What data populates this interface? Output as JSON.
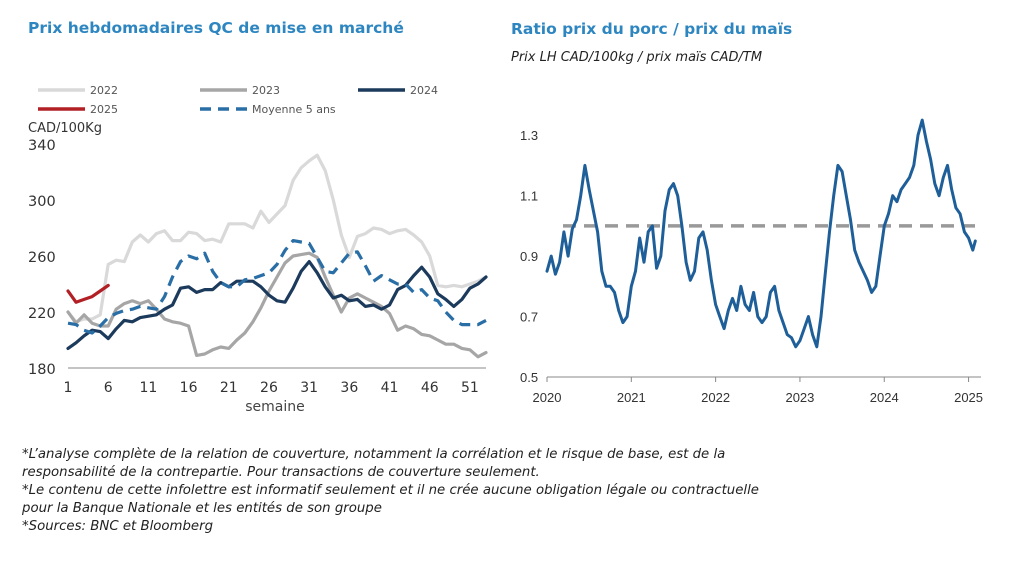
{
  "charts": [
    {
      "type": "line",
      "title": "Prix hebdomadaires QC de mise en marché",
      "unit_label": "CAD/100Kg",
      "xlabel": "semaine",
      "xlim": [
        1,
        53
      ],
      "ylim": [
        180,
        340
      ],
      "yticks": [
        180,
        220,
        260,
        300,
        340
      ],
      "xticks": [
        1,
        6,
        11,
        16,
        21,
        26,
        31,
        36,
        41,
        46,
        51
      ],
      "legend": {
        "placement": "top",
        "items": [
          "2022",
          "2023",
          "2024",
          "2025",
          "Moyenne 5 ans"
        ]
      },
      "series": [
        {
          "name": "2022",
          "color": "#d9d9d9",
          "style": "solid",
          "x": [
            1,
            2,
            3,
            4,
            5,
            6,
            7,
            8,
            9,
            10,
            11,
            12,
            13,
            14,
            15,
            16,
            17,
            18,
            19,
            20,
            21,
            22,
            23,
            24,
            25,
            26,
            27,
            28,
            29,
            30,
            31,
            32,
            33,
            34,
            35,
            36,
            37,
            38,
            39,
            40,
            41,
            42,
            43,
            44,
            45,
            46,
            47,
            48,
            49,
            50,
            51,
            52,
            53
          ],
          "y": [
            220,
            213,
            215,
            215,
            218,
            254,
            257,
            256,
            270,
            275,
            270,
            276,
            278,
            271,
            271,
            277,
            276,
            271,
            272,
            270,
            283,
            283,
            283,
            280,
            292,
            284,
            290,
            296,
            314,
            323,
            328,
            332,
            321,
            300,
            275,
            259,
            274,
            276,
            280,
            279,
            276,
            278,
            279,
            275,
            270,
            260,
            239,
            238,
            239,
            238,
            240,
            242,
            245
          ]
        },
        {
          "name": "2023",
          "color": "#a6a6a6",
          "style": "solid",
          "x": [
            1,
            2,
            3,
            4,
            5,
            6,
            7,
            8,
            9,
            10,
            11,
            12,
            13,
            14,
            15,
            16,
            17,
            18,
            19,
            20,
            21,
            22,
            23,
            24,
            25,
            26,
            27,
            28,
            29,
            30,
            31,
            32,
            33,
            34,
            35,
            36,
            37,
            38,
            39,
            40,
            41,
            42,
            43,
            44,
            45,
            46,
            47,
            48,
            49,
            50,
            51,
            52,
            53
          ],
          "y": [
            220,
            212,
            218,
            212,
            210,
            210,
            222,
            226,
            228,
            226,
            228,
            222,
            215,
            213,
            212,
            210,
            189,
            190,
            193,
            195,
            194,
            200,
            205,
            213,
            223,
            235,
            245,
            255,
            260,
            261,
            262,
            259,
            245,
            232,
            220,
            230,
            233,
            230,
            227,
            224,
            219,
            207,
            210,
            208,
            204,
            203,
            200,
            197,
            197,
            194,
            193,
            188,
            191
          ]
        },
        {
          "name": "2024",
          "color": "#1c3a5c",
          "style": "solid",
          "x": [
            1,
            2,
            3,
            4,
            5,
            6,
            7,
            8,
            9,
            10,
            11,
            12,
            13,
            14,
            15,
            16,
            17,
            18,
            19,
            20,
            21,
            22,
            23,
            24,
            25,
            26,
            27,
            28,
            29,
            30,
            31,
            32,
            33,
            34,
            35,
            36,
            37,
            38,
            39,
            40,
            41,
            42,
            43,
            44,
            45,
            46,
            47,
            48,
            49,
            50,
            51,
            52,
            53
          ],
          "y": [
            194,
            198,
            203,
            207,
            206,
            201,
            208,
            214,
            213,
            216,
            217,
            218,
            222,
            225,
            237,
            238,
            234,
            236,
            236,
            241,
            238,
            242,
            242,
            242,
            238,
            232,
            228,
            227,
            237,
            249,
            256,
            248,
            238,
            230,
            232,
            228,
            229,
            224,
            225,
            222,
            225,
            236,
            239,
            246,
            252,
            245,
            233,
            229,
            224,
            229,
            237,
            240,
            245
          ]
        },
        {
          "name": "2025",
          "color": "#b22025",
          "style": "solid",
          "x": [
            1,
            2,
            3,
            4,
            5,
            6
          ],
          "y": [
            235,
            227,
            229,
            231,
            235,
            239
          ]
        },
        {
          "name": "Moyenne 5 ans",
          "color": "#2a6ea6",
          "style": "dashed",
          "x": [
            1,
            2,
            3,
            4,
            5,
            6,
            7,
            8,
            9,
            10,
            11,
            12,
            13,
            14,
            15,
            16,
            17,
            18,
            19,
            20,
            21,
            22,
            23,
            24,
            25,
            26,
            27,
            28,
            29,
            30,
            31,
            32,
            33,
            34,
            35,
            36,
            37,
            38,
            39,
            40,
            41,
            42,
            43,
            44,
            45,
            46,
            47,
            48,
            49,
            50,
            51,
            52,
            53
          ],
          "y": [
            212,
            211,
            207,
            205,
            210,
            216,
            219,
            221,
            222,
            224,
            223,
            222,
            231,
            245,
            256,
            260,
            258,
            262,
            249,
            241,
            238,
            238,
            243,
            244,
            246,
            248,
            254,
            264,
            271,
            270,
            269,
            259,
            249,
            248,
            255,
            262,
            263,
            253,
            242,
            246,
            243,
            240,
            240,
            234,
            236,
            230,
            228,
            220,
            214,
            211,
            211,
            211,
            214
          ]
        }
      ]
    },
    {
      "type": "line",
      "title": "Ratio prix du porc / prix du maïs",
      "subtitle": "Prix LH CAD/100kg / prix maïs CAD/TM",
      "xlim": [
        2020,
        2025.1
      ],
      "ylim": [
        0.5,
        1.4
      ],
      "yticks": [
        0.5,
        0.7,
        0.9,
        1.1,
        1.3
      ],
      "xticks": [
        2020,
        2021,
        2022,
        2023,
        2024,
        2025
      ],
      "reference_line": 1.0,
      "series": [
        {
          "name": "",
          "color": "#1f5f99",
          "style": "solid",
          "x": [
            2020.0,
            2020.05,
            2020.1,
            2020.15,
            2020.2,
            2020.25,
            2020.3,
            2020.35,
            2020.4,
            2020.45,
            2020.5,
            2020.55,
            2020.6,
            2020.65,
            2020.7,
            2020.75,
            2020.8,
            2020.85,
            2020.9,
            2020.95,
            2021.0,
            2021.05,
            2021.1,
            2021.15,
            2021.2,
            2021.25,
            2021.3,
            2021.35,
            2021.4,
            2021.45,
            2021.5,
            2021.55,
            2021.6,
            2021.65,
            2021.7,
            2021.75,
            2021.8,
            2021.85,
            2021.9,
            2021.95,
            2022.0,
            2022.05,
            2022.1,
            2022.15,
            2022.2,
            2022.25,
            2022.3,
            2022.35,
            2022.4,
            2022.45,
            2022.5,
            2022.55,
            2022.6,
            2022.65,
            2022.7,
            2022.75,
            2022.8,
            2022.85,
            2022.9,
            2022.95,
            2023.0,
            2023.05,
            2023.1,
            2023.15,
            2023.2,
            2023.25,
            2023.3,
            2023.35,
            2023.4,
            2023.45,
            2023.5,
            2023.55,
            2023.6,
            2023.65,
            2023.7,
            2023.75,
            2023.8,
            2023.85,
            2023.9,
            2023.95,
            2024.0,
            2024.05,
            2024.1,
            2024.15,
            2024.2,
            2024.25,
            2024.3,
            2024.35,
            2024.4,
            2024.45,
            2024.5,
            2024.55,
            2024.6,
            2024.65,
            2024.7,
            2024.75,
            2024.8,
            2024.85,
            2024.9,
            2024.95,
            2025.0,
            2025.05,
            2025.08
          ],
          "y": [
            0.85,
            0.9,
            0.84,
            0.88,
            0.98,
            0.9,
            0.99,
            1.02,
            1.1,
            1.2,
            1.12,
            1.05,
            0.98,
            0.85,
            0.8,
            0.8,
            0.78,
            0.72,
            0.68,
            0.7,
            0.8,
            0.85,
            0.96,
            0.88,
            0.98,
            1.0,
            0.86,
            0.9,
            1.05,
            1.12,
            1.14,
            1.1,
            1.0,
            0.88,
            0.82,
            0.85,
            0.96,
            0.98,
            0.92,
            0.82,
            0.74,
            0.7,
            0.66,
            0.72,
            0.76,
            0.72,
            0.8,
            0.74,
            0.72,
            0.78,
            0.7,
            0.68,
            0.7,
            0.78,
            0.8,
            0.72,
            0.68,
            0.64,
            0.63,
            0.6,
            0.62,
            0.66,
            0.7,
            0.64,
            0.6,
            0.7,
            0.84,
            0.98,
            1.1,
            1.2,
            1.18,
            1.1,
            1.02,
            0.92,
            0.88,
            0.85,
            0.82,
            0.78,
            0.8,
            0.9,
            1.0,
            1.04,
            1.1,
            1.08,
            1.12,
            1.14,
            1.16,
            1.2,
            1.3,
            1.35,
            1.28,
            1.22,
            1.14,
            1.1,
            1.16,
            1.2,
            1.12,
            1.06,
            1.04,
            0.98,
            0.96,
            0.92,
            0.95
          ]
        }
      ]
    }
  ],
  "notes": [
    "*L’analyse complète de la relation de couverture, notamment la corrélation et le risque de base, est de la",
    "responsabilité de la contrepartie. Pour transactions de couverture seulement.",
    "*Le contenu de cette infolettre est informatif seulement et il ne crée aucune obligation légale ou contractuelle",
    "pour la Banque Nationale et les entités de son groupe",
    "*Sources: BNC et Bloomberg"
  ]
}
